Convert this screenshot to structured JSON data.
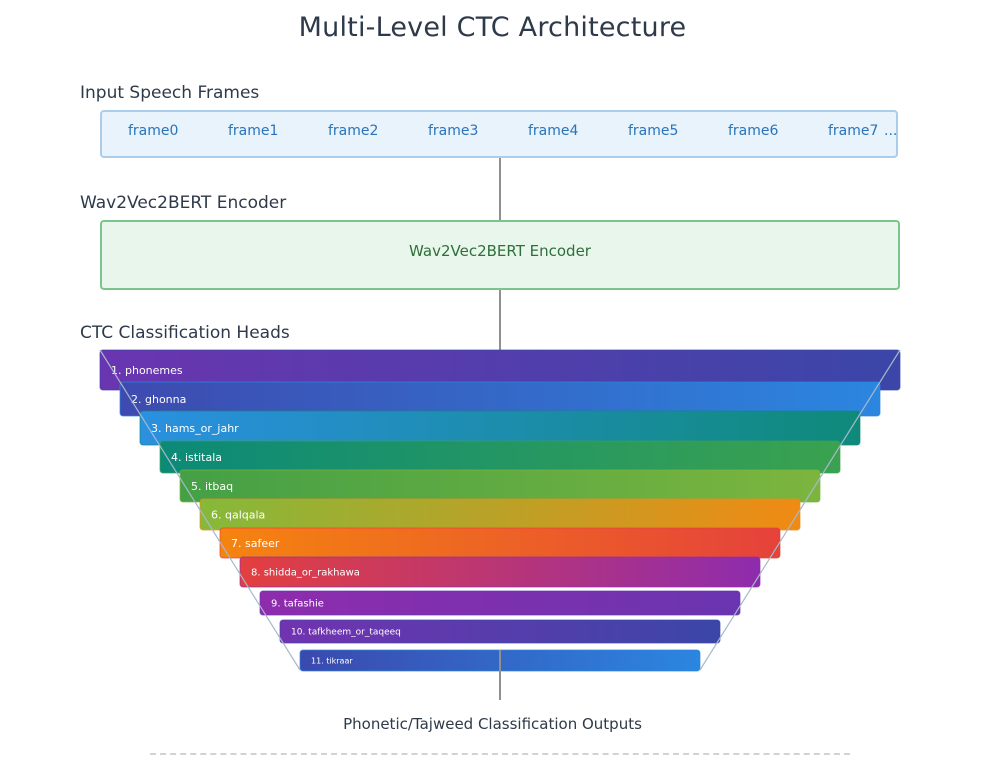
{
  "title": "Multi-Level CTC Architecture",
  "input": {
    "label": "Input Speech Frames",
    "frames": [
      "frame0",
      "frame1",
      "frame2",
      "frame3",
      "frame4",
      "frame5",
      "frame6",
      "frame7"
    ],
    "ellipsis": "..."
  },
  "encoder": {
    "label": "Wav2Vec2BERT Encoder",
    "box_text": "Wav2Vec2BERT Encoder"
  },
  "heads": {
    "label": "CTC Classification Heads",
    "items": [
      {
        "text": "1. phonemes",
        "colors": [
          "#6a35b0",
          "#3b46a8"
        ]
      },
      {
        "text": "2. ghonna",
        "colors": [
          "#3e4aaf",
          "#2b86e0"
        ]
      },
      {
        "text": "3. hams_or_jahr",
        "colors": [
          "#2a90e0",
          "#0f8a7a"
        ]
      },
      {
        "text": "4. istitala",
        "colors": [
          "#0c8a78",
          "#3aa24f"
        ]
      },
      {
        "text": "5. itbaq",
        "colors": [
          "#44a046",
          "#7cb53e"
        ]
      },
      {
        "text": "6. qalqala",
        "colors": [
          "#86b93a",
          "#f08a14"
        ]
      },
      {
        "text": "7. safeer",
        "colors": [
          "#f5840f",
          "#e5423b"
        ]
      },
      {
        "text": "8. shidda_or_rakhawa",
        "colors": [
          "#e33f3f",
          "#8e2cad"
        ]
      },
      {
        "text": "9. tafashie",
        "colors": [
          "#8e2cad",
          "#6a35b0"
        ]
      },
      {
        "text": "10. tafkheem_or_taqeeq",
        "colors": [
          "#7233b0",
          "#3b46a8"
        ]
      },
      {
        "text": "11. tikraar",
        "colors": [
          "#3b49ad",
          "#2b86e0"
        ]
      }
    ]
  },
  "output": {
    "label": "Phonetic/Tajweed Classification Outputs"
  },
  "colors": {
    "connector": "#909090",
    "funnel_edge": "#a7b9c9"
  }
}
